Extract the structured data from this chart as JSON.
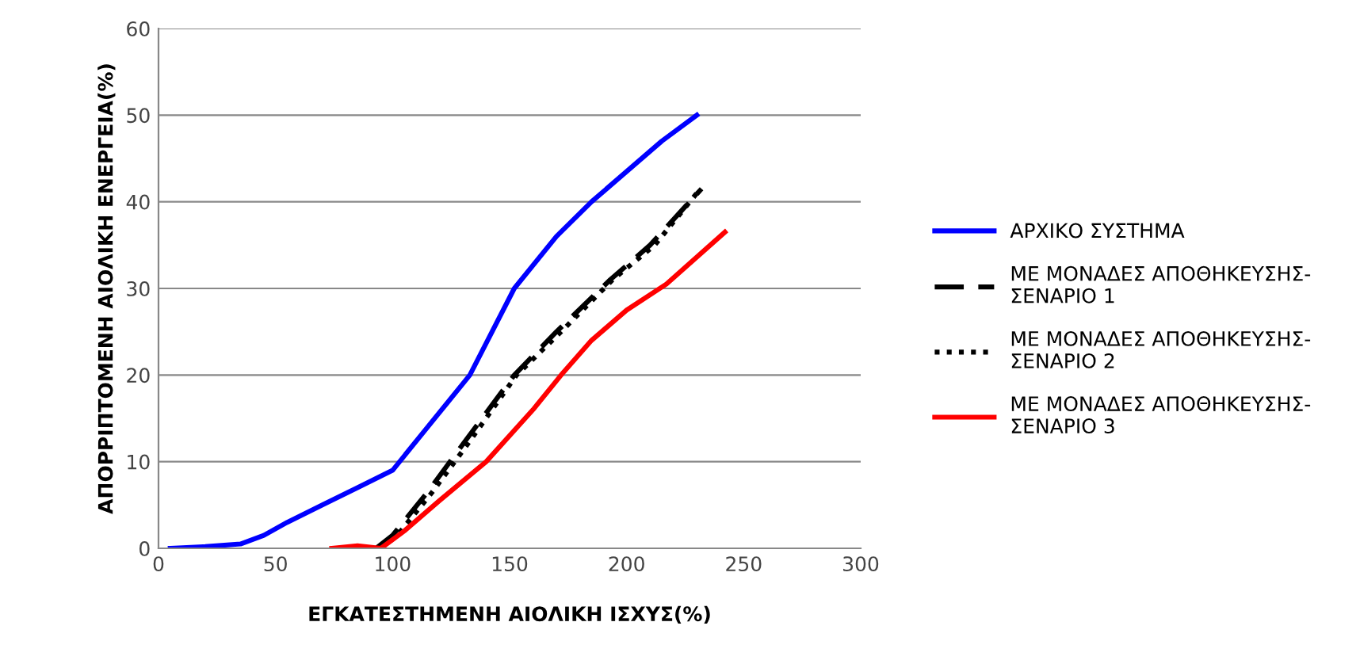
{
  "chart_data": {
    "type": "line",
    "xlabel": "ΕΓΚΑΤΕΣΤΗΜΕΝΗ ΑΙΟΛΙΚΗ ΙΣΧΥΣ(%)",
    "ylabel": "ΑΠΟΡΡΙΠΤΟΜΕΝΗ ΑΙΟΛΙΚΗ ΕΝΕΡΓΕΙΑ(%)",
    "xlim": [
      0,
      300
    ],
    "xticks": [
      0,
      50,
      100,
      150,
      200,
      250,
      300
    ],
    "ylim": [
      0,
      60
    ],
    "yticks": [
      0,
      10,
      20,
      30,
      40,
      50,
      60
    ],
    "grid": "y",
    "legend": "right",
    "marker": "none",
    "series": [
      {
        "name": "ΑΡΧΙΚΟ ΣΥΣΤΗΜΑ",
        "color": "#0000ff",
        "line_style": "solid",
        "x": [
          5,
          20,
          35,
          45,
          55,
          70,
          85,
          100,
          115,
          133,
          152,
          170,
          185,
          200,
          215,
          230
        ],
        "values": [
          0,
          0.2,
          0.5,
          1.5,
          3,
          5,
          7,
          9,
          14,
          20,
          30,
          36,
          40,
          43.5,
          47,
          50
        ]
      },
      {
        "name": "ΜΕ ΜΟΝΑΔΕΣ ΑΠΟΘΗΚΕΥΣΗΣ-\nΣΕΝΑΡΙΟ 1",
        "color": "#000000",
        "line_style": "dashed",
        "x": [
          93,
          100,
          115,
          130,
          152,
          170,
          193,
          210,
          232
        ],
        "values": [
          0,
          1.5,
          6.5,
          12,
          20,
          25,
          31,
          35,
          41.5
        ]
      },
      {
        "name": "ΜΕ ΜΟΝΑΔΕΣ ΑΠΟΘΗΚΕΥΣΗΣ-\nΣΕΝΑΡΙΟ 2",
        "color": "#000000",
        "line_style": "dotted",
        "x": [
          95,
          102,
          117,
          132,
          153,
          172,
          194,
          212,
          230
        ],
        "values": [
          0,
          1.5,
          6.5,
          12,
          20,
          25,
          31,
          35,
          41
        ]
      },
      {
        "name": "ΜΕ ΜΟΝΑΔΕΣ ΑΠΟΘΗΚΕΥΣΗΣ-\nΣΕΝΑΡΙΟ 3",
        "color": "#ff0000",
        "line_style": "solid",
        "x": [
          74,
          85,
          95,
          105,
          120,
          140,
          160,
          172,
          185,
          200,
          217,
          242
        ],
        "values": [
          0,
          0.3,
          0,
          2,
          5.5,
          10,
          16,
          20,
          24,
          27.5,
          30.5,
          36.5
        ]
      }
    ]
  }
}
